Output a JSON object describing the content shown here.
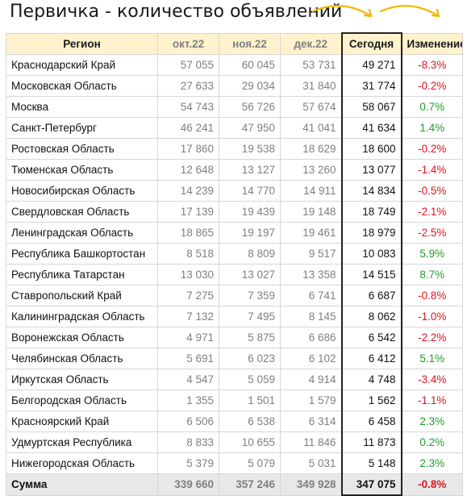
{
  "title": "Первичка - количество объявлений",
  "headers": {
    "region": "Регион",
    "oct": "окт.22",
    "nov": "ноя.22",
    "dec": "дек.22",
    "today": "Сегодня",
    "change": "Изменение"
  },
  "colors": {
    "header_bg": "#fff2cc",
    "negative": "#e0141e",
    "positive": "#1e9e28",
    "past": "#7f7f7f",
    "arrow": "#f5b800"
  },
  "rows": [
    {
      "region": "Краснодарский Край",
      "oct": "57 055",
      "nov": "60 045",
      "dec": "53 731",
      "today": "49 271",
      "change": "-8.3%"
    },
    {
      "region": "Московская Область",
      "oct": "27 633",
      "nov": "29 034",
      "dec": "31 840",
      "today": "31 774",
      "change": "-0.2%"
    },
    {
      "region": "Москва",
      "oct": "54 743",
      "nov": "56 726",
      "dec": "57 674",
      "today": "58 067",
      "change": "0.7%"
    },
    {
      "region": "Санкт-Петербург",
      "oct": "46 241",
      "nov": "47 950",
      "dec": "41 041",
      "today": "41 634",
      "change": "1.4%"
    },
    {
      "region": "Ростовская Область",
      "oct": "17 860",
      "nov": "19 538",
      "dec": "18 629",
      "today": "18 600",
      "change": "-0.2%"
    },
    {
      "region": "Тюменская Область",
      "oct": "12 648",
      "nov": "13 127",
      "dec": "13 260",
      "today": "13 077",
      "change": "-1.4%"
    },
    {
      "region": "Новосибирская Область",
      "oct": "14 239",
      "nov": "14 770",
      "dec": "14 911",
      "today": "14 834",
      "change": "-0.5%"
    },
    {
      "region": "Свердловская Область",
      "oct": "17 139",
      "nov": "19 439",
      "dec": "19 148",
      "today": "18 749",
      "change": "-2.1%"
    },
    {
      "region": "Ленинградская Область",
      "oct": "18 865",
      "nov": "19 197",
      "dec": "19 461",
      "today": "18 979",
      "change": "-2.5%"
    },
    {
      "region": "Республика Башкортостан",
      "oct": "8 518",
      "nov": "8 809",
      "dec": "9 517",
      "today": "10 083",
      "change": "5.9%"
    },
    {
      "region": "Республика Татарстан",
      "oct": "13 030",
      "nov": "13 027",
      "dec": "13 358",
      "today": "14 515",
      "change": "8.7%"
    },
    {
      "region": "Ставропольский Край",
      "oct": "7 275",
      "nov": "7 359",
      "dec": "6 741",
      "today": "6 687",
      "change": "-0.8%"
    },
    {
      "region": "Калининградская Область",
      "oct": "7 132",
      "nov": "7 495",
      "dec": "8 145",
      "today": "8 062",
      "change": "-1.0%"
    },
    {
      "region": "Воронежская Область",
      "oct": "4 971",
      "nov": "5 875",
      "dec": "6 686",
      "today": "6 542",
      "change": "-2.2%"
    },
    {
      "region": "Челябинская Область",
      "oct": "5 691",
      "nov": "6 023",
      "dec": "6 102",
      "today": "6 412",
      "change": "5.1%"
    },
    {
      "region": "Иркутская Область",
      "oct": "4 547",
      "nov": "5 059",
      "dec": "4 914",
      "today": "4 748",
      "change": "-3.4%"
    },
    {
      "region": "Белгородская Область",
      "oct": "1 355",
      "nov": "1 501",
      "dec": "1 579",
      "today": "1 562",
      "change": "-1.1%"
    },
    {
      "region": "Красноярский Край",
      "oct": "6 506",
      "nov": "6 538",
      "dec": "6 314",
      "today": "6 458",
      "change": "2.3%"
    },
    {
      "region": "Удмуртская Республика",
      "oct": "8 833",
      "nov": "10 655",
      "dec": "11 846",
      "today": "11 873",
      "change": "0.2%"
    },
    {
      "region": "Нижегородская Область",
      "oct": "5 379",
      "nov": "5 079",
      "dec": "5 031",
      "today": "5 148",
      "change": "2.3%"
    }
  ],
  "total": {
    "region": "Сумма",
    "oct": "339 660",
    "nov": "357 246",
    "dec": "349 928",
    "today": "347 075",
    "change": "-0.8%"
  }
}
